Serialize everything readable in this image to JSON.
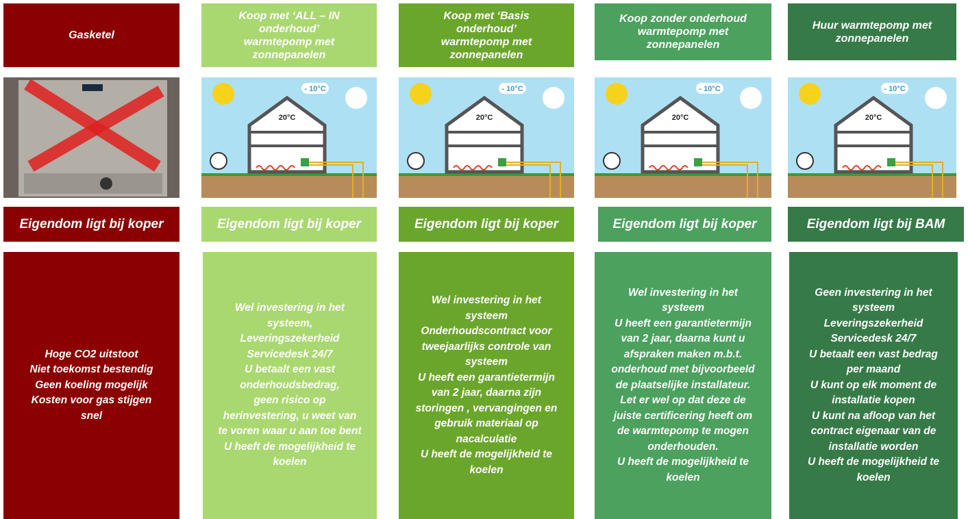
{
  "columns": [
    {
      "header": [
        "Gasketel"
      ],
      "ownership": "Eigendom ligt bij koper",
      "body": [
        "Hoge CO2 uitstoot",
        "Niet toekomst bestendig",
        "Geen koeling mogelijk",
        "Kosten voor gas stijgen",
        "snel"
      ]
    },
    {
      "header": [
        "Koop met ‘ALL – IN",
        "onderhoud’",
        "warmtepomp met",
        "zonnepanelen"
      ],
      "ownership": "Eigendom ligt bij koper",
      "body": [
        "Wel investering in het",
        "systeem,",
        "Leveringszekerheid",
        "Servicedesk 24/7",
        "U betaalt een vast",
        "onderhoudsbedrag,",
        "geen risico op",
        "herinvestering, u weet van",
        "te voren waar u aan toe bent",
        "U heeft de mogelijkheid te",
        "koelen"
      ]
    },
    {
      "header": [
        "Koop met ‘Basis",
        "onderhoud’",
        "warmtepomp met",
        "zonnepanelen"
      ],
      "ownership": "Eigendom ligt bij koper",
      "body": [
        "Wel investering in het",
        "systeem",
        "Onderhoudscontract voor",
        "tweejaarlijks controle van",
        "systeem",
        "U heeft een garantietermijn",
        "van 2 jaar, daarna zijn",
        "storingen , vervangingen en",
        "gebruik materiaal op",
        "nacalculatie",
        "U heeft de mogelijkheid te",
        "koelen"
      ]
    },
    {
      "header": [
        "Koop zonder onderhoud",
        "warmtepomp met",
        "zonnepanelen"
      ],
      "ownership": "Eigendom ligt bij koper",
      "body": [
        "Wel investering in het",
        "systeem",
        "U heeft een garantietermijn",
        "van 2 jaar, daarna kunt u",
        "afspraken maken m.b.t.",
        "onderhoud met bijvoorbeeld",
        "de plaatselijke installateur.",
        "Let er wel op dat deze de",
        "juiste certificering heeft om",
        "de warmtepomp te mogen",
        "onderhouden.",
        "U heeft de mogelijkheid te",
        "koelen"
      ]
    },
    {
      "header": [
        "Huur warmtepomp met",
        "zonnepanelen"
      ],
      "ownership": "Eigendom ligt bij BAM",
      "body": [
        "Geen investering in het",
        "systeem",
        "Leveringszekerheid",
        "Servicedesk 24/7",
        "U betaalt een vast bedrag",
        "per maand",
        "U kunt op elk moment de",
        "installatie kopen",
        "U kunt na afloop van het",
        "contract eigenaar van de",
        "installatie worden",
        "U heeft de mogelijkheid te",
        "koelen"
      ]
    }
  ],
  "illustration": {
    "outdoor_temp": "- 10°C",
    "indoor_temp": "20°C"
  }
}
